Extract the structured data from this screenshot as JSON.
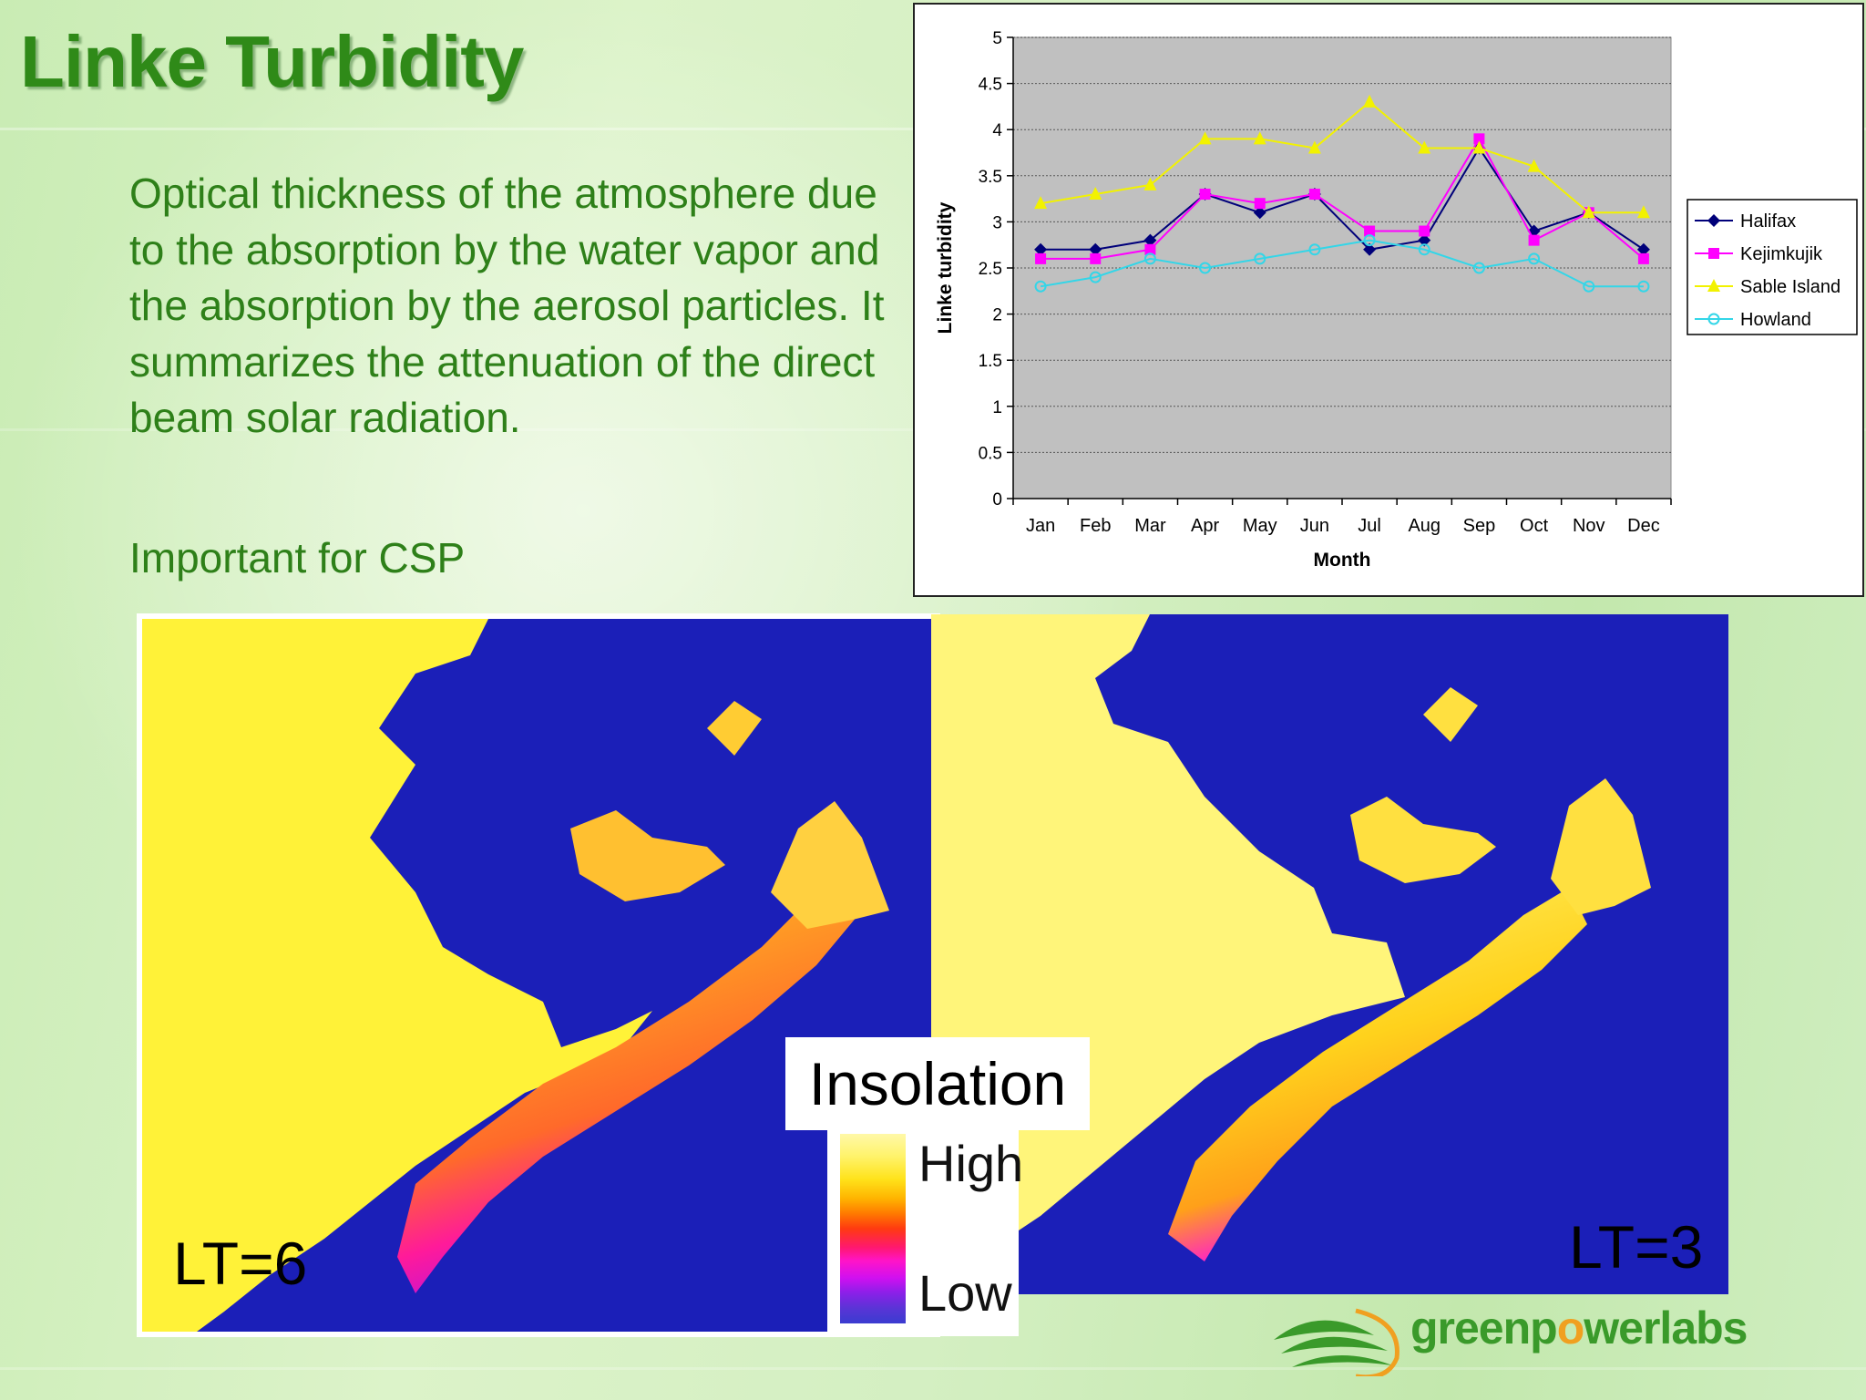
{
  "slide": {
    "title": "Linke Turbidity",
    "description": "Optical thickness of the atmosphere due to the absorption by the water vapor and the absorption by the aerosol particles. It summarizes the attenuation of the direct beam solar radiation.",
    "note": "Important for CSP"
  },
  "chart_data": {
    "type": "line",
    "xlabel": "Month",
    "ylabel": "Linke turbidity",
    "categories": [
      "Jan",
      "Feb",
      "Mar",
      "Apr",
      "May",
      "Jun",
      "Jul",
      "Aug",
      "Sep",
      "Oct",
      "Nov",
      "Dec"
    ],
    "ylim": [
      0,
      5
    ],
    "yticks": [
      "0",
      "0.5",
      "1",
      "1.5",
      "2",
      "2.5",
      "3",
      "3.5",
      "4",
      "4.5",
      "5"
    ],
    "grid": true,
    "legend_position": "right",
    "series": [
      {
        "name": "Halifax",
        "color": "#00007a",
        "marker": "diamond",
        "values": [
          2.7,
          2.7,
          2.8,
          3.3,
          3.1,
          3.3,
          2.7,
          2.8,
          3.8,
          2.9,
          3.1,
          2.7
        ]
      },
      {
        "name": "Kejimkujik",
        "color": "#ff00ff",
        "marker": "square",
        "values": [
          2.6,
          2.6,
          2.7,
          3.3,
          3.2,
          3.3,
          2.9,
          2.9,
          3.9,
          2.8,
          3.1,
          2.6
        ]
      },
      {
        "name": "Sable Island",
        "color": "#f2f200",
        "marker": "triangle",
        "values": [
          3.2,
          3.3,
          3.4,
          3.9,
          3.9,
          3.8,
          4.3,
          3.8,
          3.8,
          3.6,
          3.1,
          3.1
        ]
      },
      {
        "name": "Howland",
        "color": "#33d6e8",
        "marker": "circle",
        "values": [
          2.3,
          2.4,
          2.6,
          2.5,
          2.6,
          2.7,
          2.8,
          2.7,
          2.5,
          2.6,
          2.3,
          2.3
        ]
      }
    ]
  },
  "maps": {
    "left_label": "LT=6",
    "right_label": "LT=3"
  },
  "legend": {
    "title": "Insolation",
    "high": "High",
    "low": "Low"
  },
  "logo": {
    "part1": "green",
    "part2": "p",
    "part3": "o",
    "part4": "werlabs"
  },
  "colors": {
    "title_green": "#2f8a18",
    "ocean": "#1b1fb8",
    "plot_bg": "#c0c0c0"
  }
}
